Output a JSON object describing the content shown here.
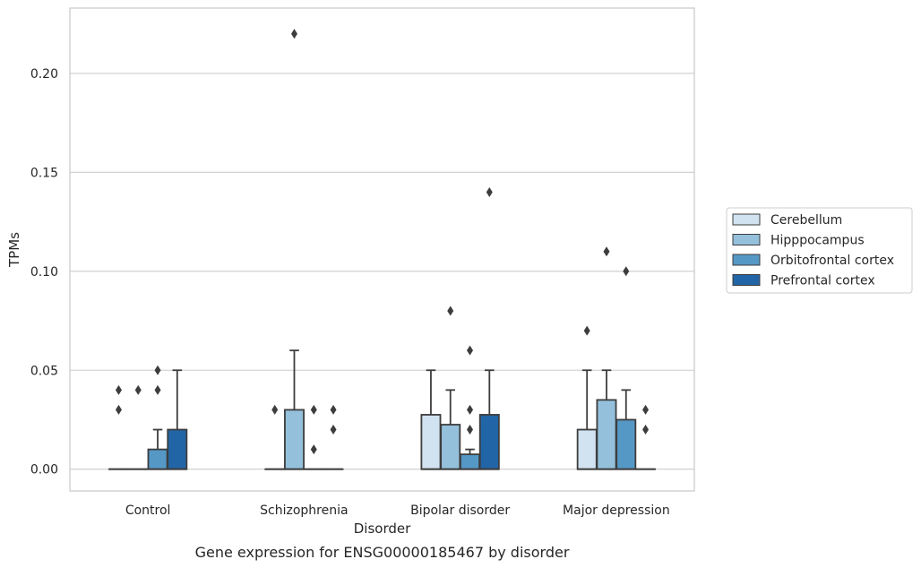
{
  "chart_data": {
    "type": "box",
    "title": "",
    "caption": "Gene expression for ENSG00000185467 by disorder",
    "xlabel": "Disorder",
    "ylabel": "TPMs",
    "ylim": [
      -0.011,
      0.233
    ],
    "yticks": [
      0.0,
      0.05,
      0.1,
      0.15,
      0.2
    ],
    "ytick_labels": [
      "0.00",
      "0.05",
      "0.10",
      "0.15",
      "0.20"
    ],
    "grid": true,
    "legend_position": "right",
    "categories": [
      "Control",
      "Schizophrenia",
      "Bipolar disorder",
      "Major depression"
    ],
    "series": [
      {
        "name": "Cerebellum",
        "color": "#d1e2f0",
        "boxes": [
          {
            "q1": 0,
            "median": 0,
            "q3": 0,
            "whisker_low": 0,
            "whisker_high": 0,
            "outliers": [
              0.03,
              0.04
            ]
          },
          {
            "q1": 0,
            "median": 0,
            "q3": 0,
            "whisker_low": 0,
            "whisker_high": 0,
            "outliers": [
              0.03
            ]
          },
          {
            "q1": 0,
            "median": 0,
            "q3": 0.0275,
            "whisker_low": 0,
            "whisker_high": 0.05,
            "outliers": []
          },
          {
            "q1": 0,
            "median": 0,
            "q3": 0.02,
            "whisker_low": 0,
            "whisker_high": 0.05,
            "outliers": [
              0.07
            ]
          }
        ]
      },
      {
        "name": "Hipppocampus",
        "color": "#94c0db",
        "boxes": [
          {
            "q1": 0,
            "median": 0,
            "q3": 0,
            "whisker_low": 0,
            "whisker_high": 0,
            "outliers": [
              0.04
            ]
          },
          {
            "q1": 0,
            "median": 0,
            "q3": 0.03,
            "whisker_low": 0,
            "whisker_high": 0.06,
            "outliers": [
              0.22
            ]
          },
          {
            "q1": 0,
            "median": 0,
            "q3": 0.0225,
            "whisker_low": 0,
            "whisker_high": 0.04,
            "outliers": [
              0.08
            ]
          },
          {
            "q1": 0,
            "median": 0,
            "q3": 0.035,
            "whisker_low": 0,
            "whisker_high": 0.05,
            "outliers": [
              0.11
            ]
          }
        ]
      },
      {
        "name": "Orbitofrontal cortex",
        "color": "#5598c6",
        "boxes": [
          {
            "q1": 0,
            "median": 0,
            "q3": 0.01,
            "whisker_low": 0,
            "whisker_high": 0.02,
            "outliers": [
              0.04,
              0.05
            ]
          },
          {
            "q1": 0,
            "median": 0,
            "q3": 0,
            "whisker_low": 0,
            "whisker_high": 0,
            "outliers": [
              0.01,
              0.03
            ]
          },
          {
            "q1": 0,
            "median": 0,
            "q3": 0.0075,
            "whisker_low": 0,
            "whisker_high": 0.01,
            "outliers": [
              0.02,
              0.03,
              0.06
            ]
          },
          {
            "q1": 0,
            "median": 0,
            "q3": 0.025,
            "whisker_low": 0,
            "whisker_high": 0.04,
            "outliers": [
              0.1
            ]
          }
        ]
      },
      {
        "name": "Prefrontal cortex",
        "color": "#2265a6",
        "boxes": [
          {
            "q1": 0,
            "median": 0,
            "q3": 0.02,
            "whisker_low": 0,
            "whisker_high": 0.05,
            "outliers": []
          },
          {
            "q1": 0,
            "median": 0,
            "q3": 0,
            "whisker_low": 0,
            "whisker_high": 0,
            "outliers": [
              0.02,
              0.03
            ]
          },
          {
            "q1": 0,
            "median": 0,
            "q3": 0.0275,
            "whisker_low": 0,
            "whisker_high": 0.05,
            "outliers": [
              0.14
            ]
          },
          {
            "q1": 0,
            "median": 0,
            "q3": 0,
            "whisker_low": 0,
            "whisker_high": 0,
            "outliers": [
              0.02,
              0.03
            ]
          }
        ]
      }
    ]
  }
}
